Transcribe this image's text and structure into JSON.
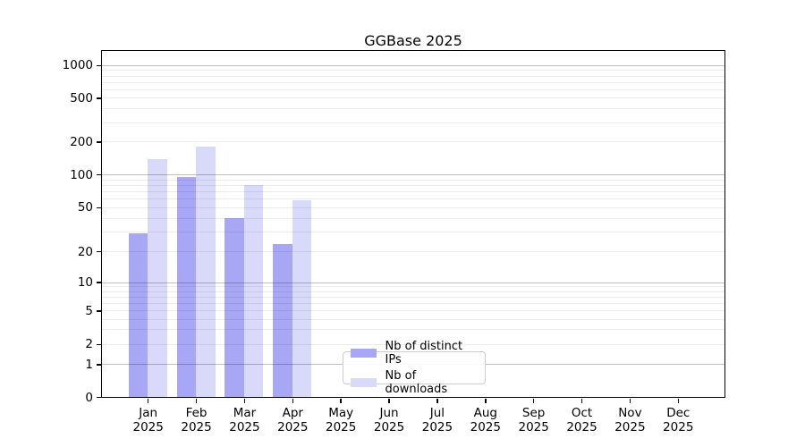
{
  "title": "GGBase 2025",
  "colors": {
    "bar_distinct_ips": "#a7a7f6",
    "bar_downloads": "#d9d9fa",
    "grid_major": "#bfbfbf",
    "grid_minor": "#ececec",
    "axis_spine": "#000000",
    "text": "#000000",
    "legend_border": "#cccccc"
  },
  "chart_data": {
    "type": "bar",
    "title": "GGBase 2025",
    "categories": [
      "Jan 2025",
      "Feb 2025",
      "Mar 2025",
      "Apr 2025",
      "May 2025",
      "Jun 2025",
      "Jul 2025",
      "Aug 2025",
      "Sep 2025",
      "Oct 2025",
      "Nov 2025",
      "Dec 2025"
    ],
    "x_tick_months": [
      "Jan",
      "Feb",
      "Mar",
      "Apr",
      "May",
      "Jun",
      "Jul",
      "Aug",
      "Sep",
      "Oct",
      "Nov",
      "Dec"
    ],
    "x_tick_year": "2025",
    "series": [
      {
        "name": "Nb of distinct IPs",
        "values": [
          29,
          94,
          40,
          23,
          0,
          0,
          0,
          0,
          0,
          0,
          0,
          0
        ]
      },
      {
        "name": "Nb of downloads",
        "values": [
          137,
          180,
          80,
          58,
          0,
          0,
          0,
          0,
          0,
          0,
          0,
          0
        ]
      }
    ],
    "y_ticks": [
      0,
      1,
      2,
      5,
      10,
      20,
      50,
      100,
      200,
      500,
      1000
    ],
    "y_tick_labels": [
      "0",
      "1",
      "2",
      "5",
      "10",
      "20",
      "50",
      "100",
      "200",
      "500",
      "1000"
    ],
    "y_scale": "log-like with 0 baseline",
    "ylim": [
      0,
      1400
    ],
    "xlabel": "",
    "ylabel": "",
    "grid": true,
    "legend_entries": [
      "Nb of distinct IPs",
      "Nb of downloads"
    ],
    "legend_position": "inside lower-center-left"
  }
}
